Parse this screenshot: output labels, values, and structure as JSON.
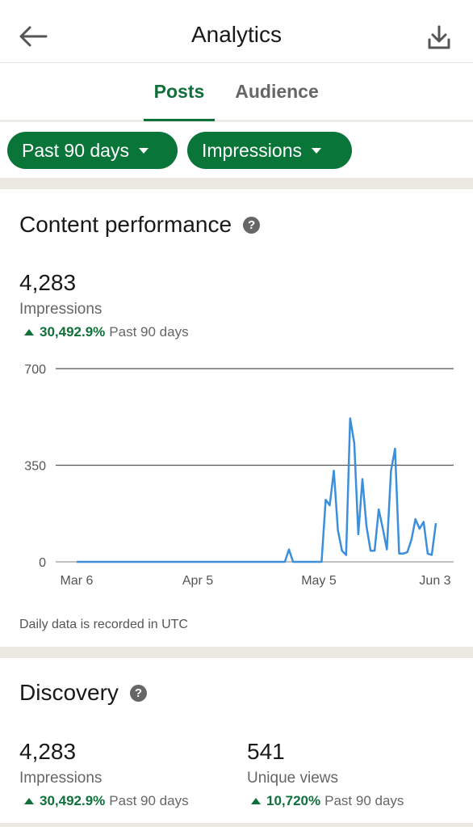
{
  "header": {
    "title": "Analytics",
    "back_icon": "arrow-left-icon",
    "download_icon": "download-icon"
  },
  "tabs": [
    {
      "label": "Posts",
      "selected": true
    },
    {
      "label": "Audience",
      "selected": false
    }
  ],
  "filters": {
    "period": "Past 90 days",
    "metric": "Impressions"
  },
  "content_performance": {
    "title": "Content performance",
    "value": "4,283",
    "label": "Impressions",
    "change": "30,492.9%",
    "change_period": "Past 90 days",
    "footnote": "Daily data is recorded in UTC"
  },
  "discovery": {
    "title": "Discovery",
    "impressions": {
      "value": "4,283",
      "label": "Impressions",
      "change": "30,492.9%",
      "change_period": "Past 90 days"
    },
    "unique_views": {
      "value": "541",
      "label": "Unique views",
      "change": "10,720%",
      "change_period": "Past 90 days"
    }
  },
  "colors": {
    "accent": "#0a7538",
    "line": "#3b8fdb",
    "divider": "#ebe8e2"
  },
  "chart_data": {
    "type": "line",
    "x_ticks": [
      "Mar 6",
      "Apr 5",
      "May 5",
      "Jun 3"
    ],
    "y_ticks": [
      "0",
      "350",
      "700"
    ],
    "ylim": [
      0,
      700
    ],
    "grid": true,
    "series": [
      {
        "values": [
          0,
          0,
          0,
          0,
          0,
          0,
          0,
          0,
          0,
          0,
          0,
          0,
          0,
          0,
          0,
          0,
          0,
          0,
          0,
          0,
          0,
          0,
          0,
          0,
          0,
          0,
          0,
          0,
          0,
          0,
          0,
          0,
          0,
          0,
          0,
          0,
          0,
          0,
          0,
          0,
          0,
          0,
          0,
          0,
          0,
          0,
          0,
          0,
          0,
          0,
          0,
          0,
          45,
          0,
          0,
          0,
          0,
          0,
          0,
          0,
          0,
          225,
          205,
          330,
          115,
          40,
          25,
          520,
          430,
          100,
          300,
          130,
          40,
          40,
          190,
          120,
          45,
          330,
          410,
          30,
          30,
          35,
          80,
          155,
          120,
          145,
          30,
          25,
          140
        ]
      }
    ]
  }
}
